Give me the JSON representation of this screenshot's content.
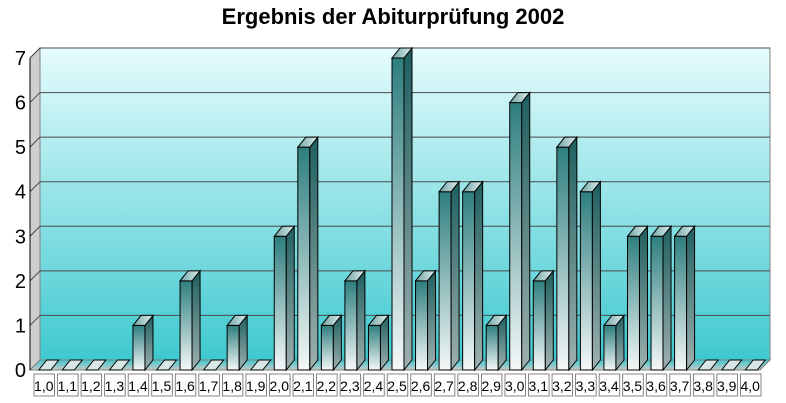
{
  "chart_data": {
    "type": "bar",
    "title": "Ergebnis der Abiturprüfung 2002",
    "xlabel": "",
    "ylabel": "",
    "ylim": [
      0,
      7
    ],
    "yticks": [
      "0",
      "1",
      "2",
      "3",
      "4",
      "5",
      "6",
      "7"
    ],
    "grid": true,
    "categories": [
      "1,0",
      "1,1",
      "1,2",
      "1,3",
      "1,4",
      "1,5",
      "1,6",
      "1,7",
      "1,8",
      "1,9",
      "2,0",
      "2,1",
      "2,2",
      "2,3",
      "2,4",
      "2,5",
      "2,6",
      "2,7",
      "2,8",
      "2,9",
      "3,0",
      "3,1",
      "3,2",
      "3,3",
      "3,4",
      "3,5",
      "3,6",
      "3,7",
      "3,8",
      "3,9",
      "4,0"
    ],
    "values": [
      0,
      0,
      0,
      0,
      1,
      0,
      2,
      0,
      1,
      0,
      3,
      5,
      1,
      2,
      1,
      7,
      2,
      4,
      4,
      1,
      6,
      2,
      5,
      4,
      1,
      3,
      3,
      3,
      0,
      0,
      0
    ]
  },
  "colors": {
    "bar_dark": "#2f7f7f",
    "bar_light": "#f2f7f7",
    "plot_top": "#e6fcfd",
    "plot_bottom": "#3ec9cf"
  }
}
